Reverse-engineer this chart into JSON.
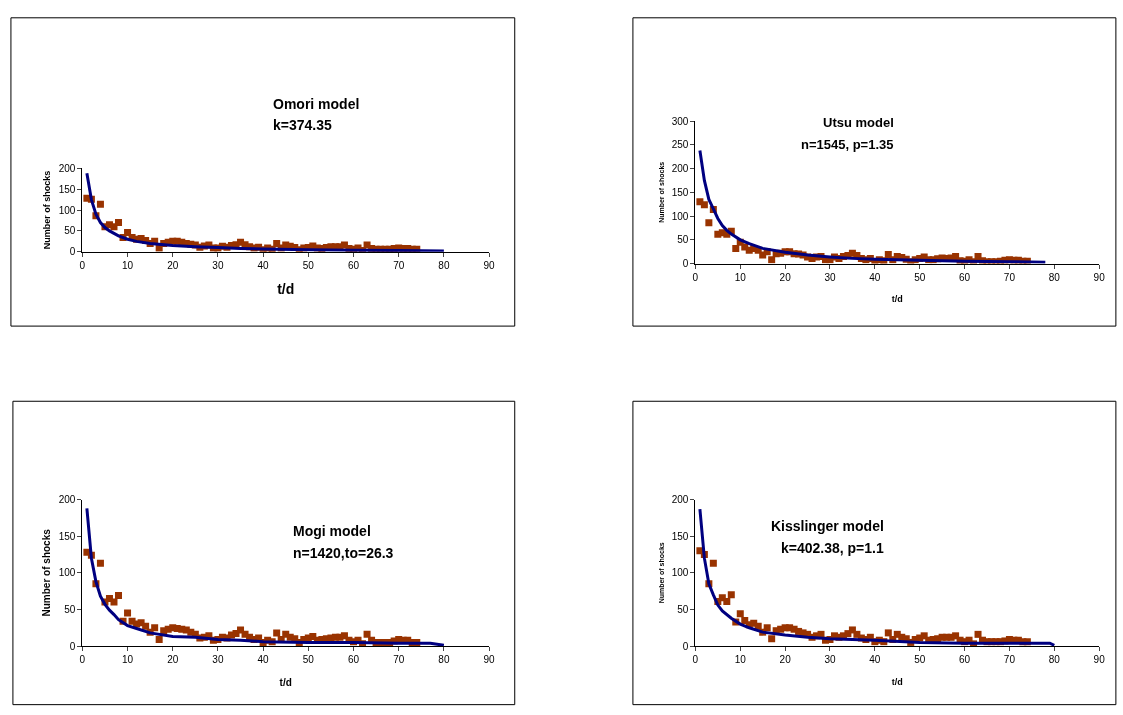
{
  "chart_data": [
    {
      "type": "scatter",
      "title": "Omori model",
      "subtitle": "k=374.35",
      "xlabel": "t/d",
      "ylabel": "Number of shocks",
      "xlim": [
        0,
        90
      ],
      "xticks": [
        0,
        10,
        20,
        30,
        40,
        50,
        60,
        70,
        80,
        90
      ],
      "ylim": [
        0,
        200
      ],
      "yticks": [
        0,
        50,
        100,
        150,
        200
      ],
      "series": [
        {
          "marker": "square",
          "color": "#993300",
          "x": [
            1,
            2,
            3,
            4,
            5,
            6,
            7,
            8,
            9,
            10,
            11,
            12,
            13,
            14,
            15,
            16,
            17,
            18,
            19,
            20,
            21,
            22,
            23,
            24,
            25,
            26,
            27,
            28,
            29,
            30,
            31,
            32,
            33,
            34,
            35,
            36,
            37,
            38,
            39,
            40,
            41,
            42,
            43,
            44,
            45,
            46,
            47,
            48,
            49,
            50,
            51,
            52,
            53,
            54,
            55,
            56,
            57,
            58,
            59,
            60,
            61,
            62,
            63,
            64,
            65,
            66,
            67,
            68,
            69,
            70,
            71,
            72,
            73,
            74
          ],
          "values": [
            128,
            126,
            86,
            114,
            60,
            65,
            60,
            70,
            34,
            46,
            34,
            30,
            32,
            27,
            20,
            25,
            9,
            20,
            23,
            25,
            25,
            23,
            20,
            18,
            16,
            11,
            14,
            16,
            9,
            9,
            13,
            11,
            15,
            17,
            23,
            17,
            12,
            9,
            11,
            5,
            9,
            6,
            20,
            9,
            16,
            13,
            10,
            5,
            9,
            10,
            14,
            9,
            8,
            10,
            12,
            12,
            12,
            16,
            8,
            6,
            9,
            3,
            16,
            8,
            6,
            6,
            6,
            6,
            8,
            9,
            8,
            8,
            6,
            6
          ]
        },
        {
          "type": "line",
          "color": "#000080",
          "x": [
            1,
            2,
            3,
            4,
            5,
            6,
            8,
            10,
            12,
            15,
            20,
            25,
            30,
            35,
            40,
            50,
            60,
            70,
            80
          ],
          "values": [
            188,
            125,
            90,
            70,
            58,
            50,
            38,
            30,
            25,
            20,
            15,
            12,
            10,
            8,
            7,
            5,
            4,
            3,
            2
          ]
        }
      ]
    },
    {
      "type": "scatter",
      "title": "Utsu model",
      "subtitle": "n=1545, p=1.35",
      "xlabel": "t/d",
      "ylabel": "Number of shocks",
      "xlim": [
        0,
        90
      ],
      "xticks": [
        0,
        10,
        20,
        30,
        40,
        50,
        60,
        70,
        80,
        90
      ],
      "ylim": [
        0,
        300
      ],
      "yticks": [
        0,
        50,
        100,
        150,
        200,
        250,
        300
      ],
      "series": [
        {
          "marker": "square",
          "color": "#993300",
          "x": [
            1,
            2,
            3,
            4,
            5,
            6,
            7,
            8,
            9,
            10,
            11,
            12,
            13,
            14,
            15,
            16,
            17,
            18,
            19,
            20,
            21,
            22,
            23,
            24,
            25,
            26,
            27,
            28,
            29,
            30,
            31,
            32,
            33,
            34,
            35,
            36,
            37,
            38,
            39,
            40,
            41,
            42,
            43,
            44,
            45,
            46,
            47,
            48,
            49,
            50,
            51,
            52,
            53,
            54,
            55,
            56,
            57,
            58,
            59,
            60,
            61,
            62,
            63,
            64,
            65,
            66,
            67,
            68,
            69,
            70,
            71,
            72,
            73,
            74
          ],
          "values": [
            130,
            124,
            86,
            114,
            62,
            65,
            62,
            68,
            32,
            45,
            35,
            28,
            32,
            28,
            18,
            25,
            8,
            21,
            22,
            25,
            25,
            21,
            20,
            18,
            14,
            11,
            14,
            15,
            8,
            8,
            14,
            11,
            15,
            17,
            22,
            17,
            11,
            8,
            11,
            4,
            8,
            6,
            19,
            8,
            15,
            13,
            9,
            4,
            8,
            11,
            14,
            8,
            8,
            10,
            12,
            11,
            12,
            15,
            6,
            5,
            8,
            4,
            15,
            6,
            4,
            4,
            4,
            5,
            7,
            8,
            7,
            7,
            5,
            5
          ]
        },
        {
          "type": "line",
          "color": "#000080",
          "x": [
            1,
            2,
            3,
            4,
            5,
            6,
            7,
            8,
            10,
            12,
            15,
            20,
            25,
            30,
            35,
            40,
            50,
            60,
            70,
            78
          ],
          "values": [
            238,
            175,
            135,
            115,
            95,
            80,
            70,
            62,
            50,
            42,
            32,
            24,
            18,
            14,
            11,
            9,
            7,
            5,
            4,
            3
          ]
        }
      ]
    },
    {
      "type": "scatter",
      "title": "Mogi model",
      "subtitle": "n=1420,to=26.3",
      "xlabel": "t/d",
      "ylabel": "Number of shocks",
      "xlim": [
        0,
        90
      ],
      "xticks": [
        0,
        10,
        20,
        30,
        40,
        50,
        60,
        70,
        80,
        90
      ],
      "ylim": [
        0,
        200
      ],
      "yticks": [
        0,
        50,
        100,
        150,
        200
      ],
      "series": [
        {
          "marker": "square",
          "color": "#993300",
          "x": [
            1,
            2,
            3,
            4,
            5,
            6,
            7,
            8,
            9,
            10,
            11,
            12,
            13,
            14,
            15,
            16,
            17,
            18,
            19,
            20,
            21,
            22,
            23,
            24,
            25,
            26,
            27,
            28,
            29,
            30,
            31,
            32,
            33,
            34,
            35,
            36,
            37,
            38,
            39,
            40,
            41,
            42,
            43,
            44,
            45,
            46,
            47,
            48,
            49,
            50,
            51,
            52,
            53,
            54,
            55,
            56,
            57,
            58,
            59,
            60,
            61,
            62,
            63,
            64,
            65,
            66,
            67,
            68,
            69,
            70,
            71,
            72,
            73,
            74
          ],
          "values": [
            128,
            124,
            85,
            113,
            60,
            65,
            60,
            69,
            34,
            45,
            34,
            30,
            32,
            27,
            19,
            25,
            9,
            21,
            23,
            25,
            24,
            23,
            22,
            19,
            16,
            11,
            12,
            14,
            8,
            9,
            12,
            11,
            15,
            17,
            22,
            16,
            12,
            9,
            11,
            5,
            8,
            6,
            18,
            9,
            16,
            12,
            10,
            5,
            9,
            11,
            13,
            8,
            9,
            10,
            11,
            12,
            12,
            14,
            8,
            6,
            8,
            3,
            16,
            8,
            5,
            5,
            5,
            5,
            7,
            9,
            8,
            8,
            5,
            5
          ]
        },
        {
          "type": "line",
          "color": "#000080",
          "x": [
            1,
            2,
            3,
            4,
            5,
            6,
            7,
            8,
            10,
            12,
            15,
            20,
            25,
            30,
            35,
            40,
            50,
            60,
            70,
            77,
            80
          ],
          "values": [
            188,
            120,
            88,
            68,
            57,
            49,
            43,
            36,
            28,
            24,
            18,
            13,
            12,
            9,
            8,
            6,
            5,
            5,
            4,
            4,
            1
          ]
        }
      ]
    },
    {
      "type": "scatter",
      "title": "Kisslinger model",
      "subtitle": "k=402.38, p=1.1",
      "xlabel": "t/d",
      "ylabel": "Number of shocks",
      "xlim": [
        0,
        90
      ],
      "xticks": [
        0,
        10,
        20,
        30,
        40,
        50,
        60,
        70,
        80,
        90
      ],
      "ylim": [
        0,
        200
      ],
      "yticks": [
        0,
        50,
        100,
        150,
        200
      ],
      "series": [
        {
          "marker": "square",
          "color": "#993300",
          "x": [
            1,
            2,
            3,
            4,
            5,
            6,
            7,
            8,
            9,
            10,
            11,
            12,
            13,
            14,
            15,
            16,
            17,
            18,
            19,
            20,
            21,
            22,
            23,
            24,
            25,
            26,
            27,
            28,
            29,
            30,
            31,
            32,
            33,
            34,
            35,
            36,
            37,
            38,
            39,
            40,
            41,
            42,
            43,
            44,
            45,
            46,
            47,
            48,
            49,
            50,
            51,
            52,
            53,
            54,
            55,
            56,
            57,
            58,
            59,
            60,
            61,
            62,
            63,
            64,
            65,
            66,
            67,
            68,
            69,
            70,
            71,
            72,
            73,
            74
          ],
          "values": [
            130,
            125,
            85,
            113,
            61,
            66,
            61,
            70,
            33,
            44,
            35,
            29,
            31,
            27,
            19,
            25,
            10,
            21,
            23,
            25,
            25,
            23,
            20,
            18,
            16,
            12,
            14,
            16,
            8,
            9,
            14,
            12,
            14,
            17,
            22,
            16,
            11,
            9,
            12,
            6,
            8,
            6,
            18,
            9,
            16,
            12,
            10,
            5,
            9,
            11,
            14,
            8,
            9,
            10,
            12,
            12,
            12,
            14,
            8,
            6,
            8,
            3,
            16,
            8,
            6,
            6,
            6,
            6,
            7,
            9,
            8,
            8,
            6,
            6
          ]
        },
        {
          "type": "line",
          "color": "#000080",
          "x": [
            1,
            2,
            3,
            4,
            5,
            6,
            8,
            10,
            12,
            15,
            20,
            25,
            30,
            35,
            40,
            50,
            60,
            70,
            79,
            80
          ],
          "values": [
            187,
            120,
            85,
            70,
            56,
            48,
            38,
            30,
            25,
            19,
            15,
            12,
            10,
            9,
            8,
            5,
            4,
            4,
            4,
            1
          ]
        }
      ]
    }
  ]
}
